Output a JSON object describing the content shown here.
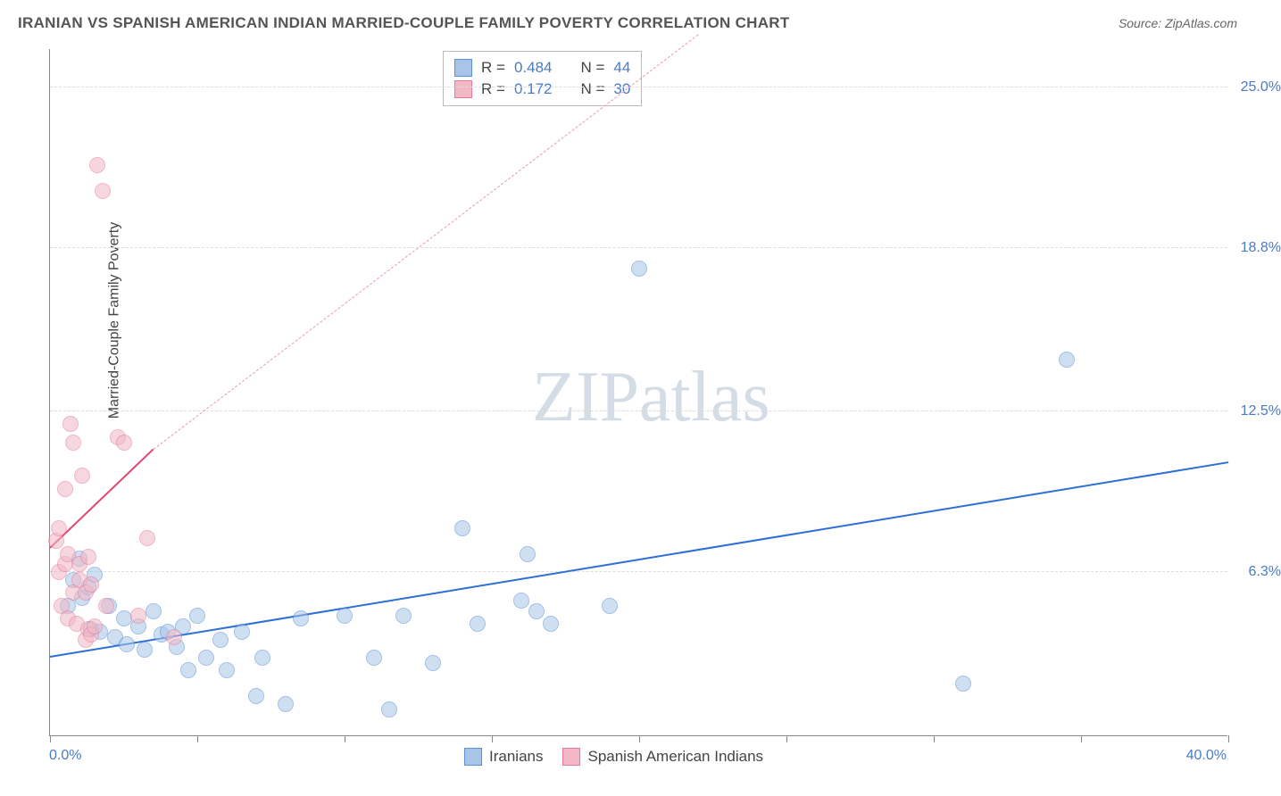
{
  "title": "IRANIAN VS SPANISH AMERICAN INDIAN MARRIED-COUPLE FAMILY POVERTY CORRELATION CHART",
  "source_label": "Source: ZipAtlas.com",
  "watermark": "ZIPatlas",
  "chart": {
    "type": "scatter",
    "ylabel": "Married-Couple Family Poverty",
    "xlim": [
      0,
      40
    ],
    "ylim": [
      0,
      26.5
    ],
    "x_axis_start_label": "0.0%",
    "x_axis_end_label": "40.0%",
    "x_ticks": [
      0,
      5,
      10,
      15,
      20,
      25,
      30,
      35,
      40
    ],
    "y_gridlines": [
      6.3,
      12.5,
      18.8,
      25.0
    ],
    "y_tick_labels": [
      "6.3%",
      "12.5%",
      "18.8%",
      "25.0%"
    ],
    "background_color": "#ffffff",
    "grid_color": "#dddddd",
    "axis_color": "#888888",
    "ytick_label_color": "#4a7bc8",
    "marker_radius": 9,
    "series": [
      {
        "name": "Iranians",
        "label": "Iranians",
        "fill_color": "#a8c5e8",
        "fill_opacity": 0.55,
        "stroke_color": "#5b8fd6",
        "stroke_width": 1.2,
        "R": "0.484",
        "N": "44",
        "trend": {
          "solid": {
            "x1": 0,
            "y1": 3.0,
            "x2": 40,
            "y2": 10.5,
            "color": "#2e6fd6",
            "width": 2.2
          }
        },
        "points": [
          [
            0.6,
            5.0
          ],
          [
            0.8,
            6.0
          ],
          [
            1.0,
            6.8
          ],
          [
            1.1,
            5.3
          ],
          [
            1.3,
            5.7
          ],
          [
            1.4,
            4.1
          ],
          [
            1.5,
            6.2
          ],
          [
            1.7,
            4.0
          ],
          [
            2.0,
            5.0
          ],
          [
            2.2,
            3.8
          ],
          [
            2.5,
            4.5
          ],
          [
            2.6,
            3.5
          ],
          [
            3.0,
            4.2
          ],
          [
            3.2,
            3.3
          ],
          [
            3.5,
            4.8
          ],
          [
            3.8,
            3.9
          ],
          [
            4.0,
            4.0
          ],
          [
            4.3,
            3.4
          ],
          [
            4.5,
            4.2
          ],
          [
            4.7,
            2.5
          ],
          [
            5.0,
            4.6
          ],
          [
            5.3,
            3.0
          ],
          [
            5.8,
            3.7
          ],
          [
            6.0,
            2.5
          ],
          [
            6.5,
            4.0
          ],
          [
            7.0,
            1.5
          ],
          [
            7.2,
            3.0
          ],
          [
            8.0,
            1.2
          ],
          [
            8.5,
            4.5
          ],
          [
            10.0,
            4.6
          ],
          [
            11.0,
            3.0
          ],
          [
            11.5,
            1.0
          ],
          [
            12.0,
            4.6
          ],
          [
            13.0,
            2.8
          ],
          [
            14.0,
            8.0
          ],
          [
            14.5,
            4.3
          ],
          [
            16.0,
            5.2
          ],
          [
            16.2,
            7.0
          ],
          [
            16.5,
            4.8
          ],
          [
            17.0,
            4.3
          ],
          [
            19.0,
            5.0
          ],
          [
            20.0,
            18.0
          ],
          [
            31.0,
            2.0
          ],
          [
            34.5,
            14.5
          ]
        ]
      },
      {
        "name": "Spanish American Indians",
        "label": "Spanish American Indians",
        "fill_color": "#f2b8c6",
        "fill_opacity": 0.55,
        "stroke_color": "#e57a96",
        "stroke_width": 1.2,
        "R": "0.172",
        "N": "30",
        "trend": {
          "solid": {
            "x1": 0,
            "y1": 7.2,
            "x2": 3.5,
            "y2": 11.0,
            "color": "#e0476f",
            "width": 2.2
          },
          "dashed": {
            "x1": 3.5,
            "y1": 11.0,
            "x2": 22,
            "y2": 27.0,
            "color": "#e89ab0",
            "width": 1.4
          }
        },
        "points": [
          [
            0.2,
            7.5
          ],
          [
            0.3,
            8.0
          ],
          [
            0.3,
            6.3
          ],
          [
            0.4,
            5.0
          ],
          [
            0.5,
            6.6
          ],
          [
            0.5,
            9.5
          ],
          [
            0.6,
            7.0
          ],
          [
            0.6,
            4.5
          ],
          [
            0.7,
            12.0
          ],
          [
            0.8,
            5.5
          ],
          [
            0.8,
            11.3
          ],
          [
            0.9,
            4.3
          ],
          [
            1.0,
            6.6
          ],
          [
            1.0,
            6.0
          ],
          [
            1.1,
            10.0
          ],
          [
            1.2,
            3.7
          ],
          [
            1.2,
            5.5
          ],
          [
            1.3,
            4.1
          ],
          [
            1.3,
            6.9
          ],
          [
            1.4,
            3.9
          ],
          [
            1.4,
            5.8
          ],
          [
            1.5,
            4.2
          ],
          [
            1.6,
            22.0
          ],
          [
            1.8,
            21.0
          ],
          [
            1.9,
            5.0
          ],
          [
            2.3,
            11.5
          ],
          [
            2.5,
            11.3
          ],
          [
            3.0,
            4.6
          ],
          [
            3.3,
            7.6
          ],
          [
            4.2,
            3.8
          ]
        ]
      }
    ],
    "stats_legend": {
      "R_prefix": "R =",
      "N_prefix": "N ="
    },
    "bottom_legend": true
  }
}
